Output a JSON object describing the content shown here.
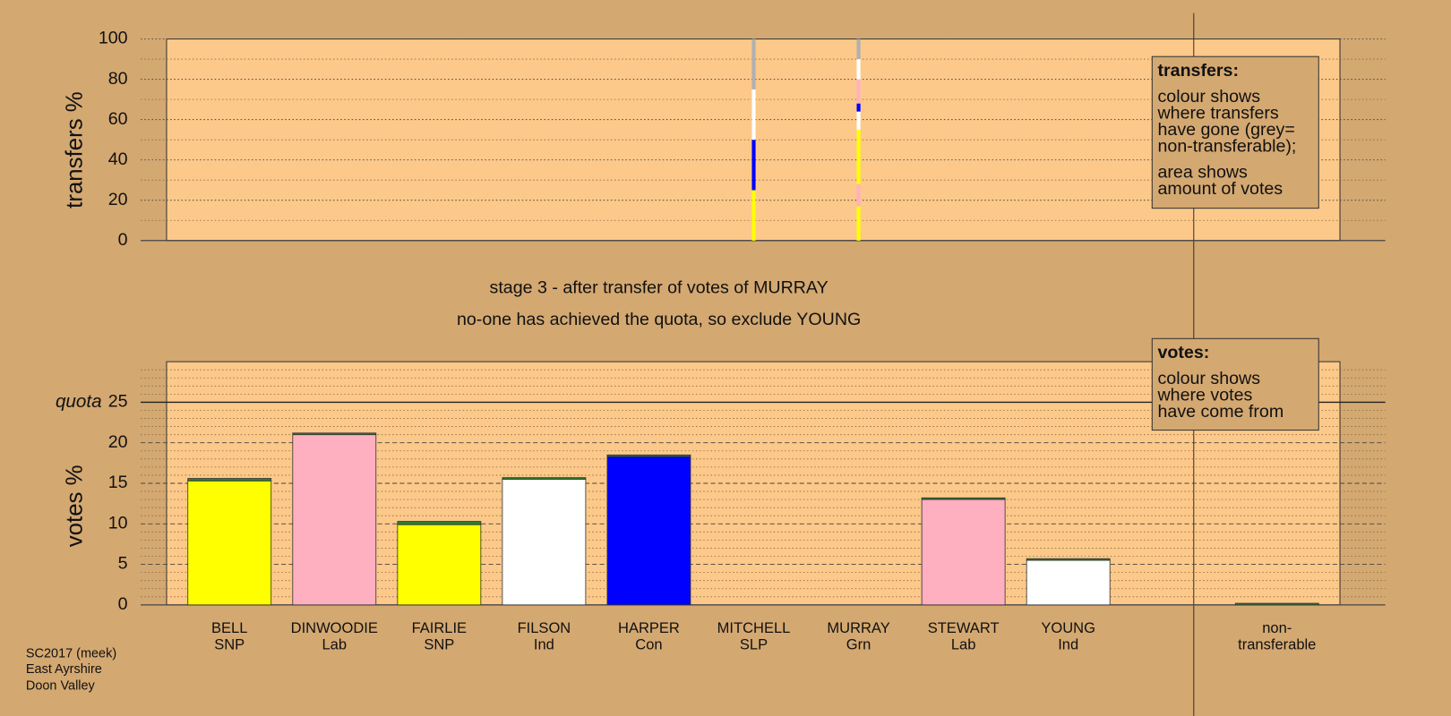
{
  "chart_data": [
    {
      "type": "stacked-bar",
      "ylabel": "transfers %",
      "ylim": [
        0,
        100
      ],
      "yticks": [
        0,
        20,
        40,
        60,
        80,
        100
      ],
      "minor_yticks": [
        10,
        30,
        50,
        70,
        90
      ],
      "series": [
        {
          "color": "#ffff00",
          "values": [
            null,
            null,
            null,
            null,
            null,
            25,
            17,
            null,
            null,
            null
          ]
        },
        {
          "color": "#ffb0c0",
          "values": [
            null,
            null,
            null,
            null,
            null,
            null,
            11,
            null,
            null,
            null
          ]
        },
        {
          "color": "#ffff00",
          "values": [
            null,
            null,
            null,
            null,
            null,
            null,
            27,
            null,
            null,
            null
          ]
        },
        {
          "color": "#ffffff",
          "values": [
            null,
            null,
            null,
            null,
            null,
            null,
            9,
            null,
            null,
            null
          ]
        },
        {
          "color": "#0000ff",
          "values": [
            null,
            null,
            null,
            null,
            null,
            25,
            4,
            null,
            null,
            null
          ]
        },
        {
          "color": "#ffb0c0",
          "values": [
            null,
            null,
            null,
            null,
            null,
            null,
            12,
            null,
            null,
            null
          ]
        },
        {
          "color": "#ffffff",
          "values": [
            null,
            null,
            null,
            null,
            null,
            25,
            10,
            null,
            null,
            null
          ]
        },
        {
          "color": "#b0b0b0",
          "values": [
            null,
            null,
            null,
            null,
            null,
            25,
            10,
            null,
            null,
            null
          ]
        }
      ],
      "note": {
        "title": "transfers:",
        "paragraphs": [
          [
            "colour shows",
            "where transfers",
            "have gone (grey=",
            "non-transferable);"
          ],
          [
            "area shows",
            "amount of votes"
          ]
        ]
      }
    },
    {
      "type": "stacked-bar",
      "ylabel": "votes %",
      "ylim": [
        0,
        30
      ],
      "yticks": [
        0,
        5,
        10,
        15,
        20,
        25
      ],
      "minor_yticks": [
        1,
        2,
        3,
        4,
        6,
        7,
        8,
        9,
        11,
        12,
        13,
        14,
        16,
        17,
        18,
        19,
        21,
        22,
        23,
        24,
        26,
        27,
        28,
        29
      ],
      "quota": 25,
      "quota_label": "quota",
      "categories": [
        [
          "BELL",
          "SNP"
        ],
        [
          "DINWOODIE",
          "Lab"
        ],
        [
          "FAIRLIE",
          "SNP"
        ],
        [
          "FILSON",
          "Ind"
        ],
        [
          "HARPER",
          "Con"
        ],
        [
          "MITCHELL",
          "SLP"
        ],
        [
          "MURRAY",
          "Grn"
        ],
        [
          "STEWART",
          "Lab"
        ],
        [
          "YOUNG",
          "Ind"
        ],
        [
          "non-",
          "transferable"
        ]
      ],
      "series": [
        {
          "colors": [
            "#ffff00",
            "#ffb0c0",
            "#ffff00",
            "#ffffff",
            "#0000ff",
            "#ffffff",
            "#00c000",
            "#ffb0c0",
            "#ffffff",
            "#b0b0b0"
          ],
          "values": [
            15.3,
            21.0,
            9.9,
            15.5,
            18.3,
            0,
            0,
            13.0,
            5.5,
            0
          ]
        },
        {
          "color": "#2e7d32",
          "values": [
            0.3,
            0.2,
            0.4,
            0.2,
            0.2,
            0,
            0,
            0.2,
            0.2,
            0.2
          ]
        }
      ],
      "note": {
        "title": "votes:",
        "paragraphs": [
          [
            "colour shows",
            "where votes",
            "have come from"
          ]
        ]
      }
    }
  ],
  "stage": "stage 3 - after transfer of votes of MURRAY",
  "status": "no-one has achieved the quota, so exclude YOUNG",
  "footer": [
    "SC2017 (meek)",
    "East Ayrshire",
    "Doon Valley"
  ]
}
